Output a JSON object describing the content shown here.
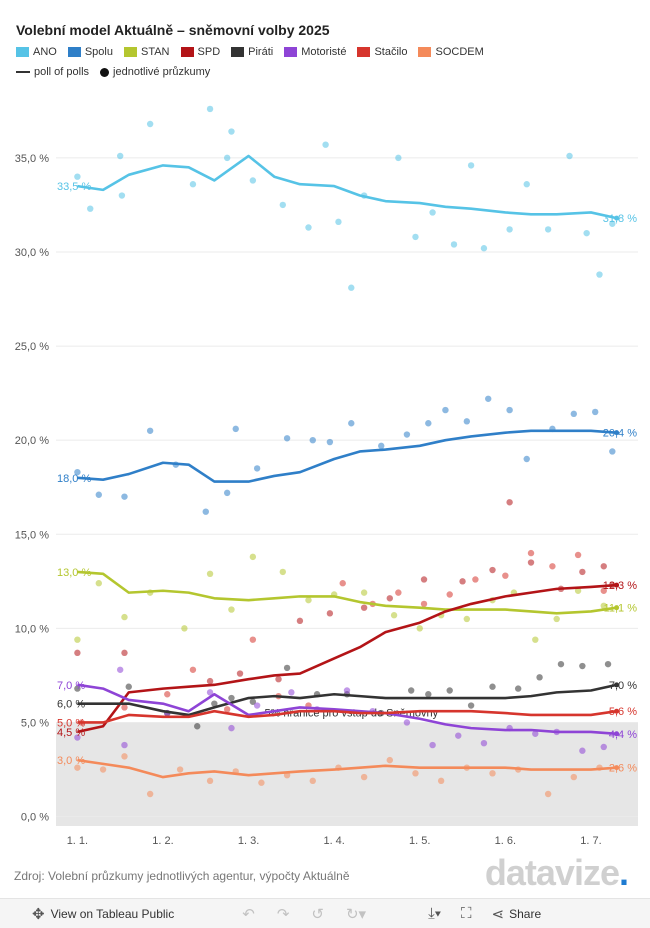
{
  "title": "Volební model Aktuálně – sněmovní volby 2025",
  "legend": {
    "parties": [
      {
        "name": "ANO",
        "color": "#56c3e6"
      },
      {
        "name": "Spolu",
        "color": "#2f7fc8"
      },
      {
        "name": "STAN",
        "color": "#b4c62f"
      },
      {
        "name": "SPD",
        "color": "#b31417"
      },
      {
        "name": "Piráti",
        "color": "#333333"
      },
      {
        "name": "Motoristé",
        "color": "#8e44d6"
      },
      {
        "name": "Stačilo",
        "color": "#d6352d"
      },
      {
        "name": "SOCDEM",
        "color": "#f48a5a"
      }
    ],
    "poll_of_polls": "poll of polls",
    "individual_polls": "jednotlivé průzkumy"
  },
  "source": "Zdroj: Volební průzkumy jednotlivých agentur, výpočty Aktuálně",
  "brand": {
    "main": "datavize",
    "accent": "."
  },
  "toolbar": {
    "view_label": "View on Tableau Public",
    "share_label": "Share"
  },
  "chart_data": {
    "type": "line",
    "x": [
      1,
      1.3,
      1.6,
      2,
      2.3,
      2.6,
      3,
      3.3,
      3.6,
      4,
      4.3,
      4.6,
      5,
      5.3,
      5.6,
      6,
      6.3,
      6.6,
      7,
      7.3
    ],
    "x_ticks": [
      {
        "label": "1. 1.",
        "x": 1
      },
      {
        "label": "1. 2.",
        "x": 2
      },
      {
        "label": "1. 3.",
        "x": 3
      },
      {
        "label": "1. 4.",
        "x": 4
      },
      {
        "label": "1. 5.",
        "x": 5
      },
      {
        "label": "1. 6.",
        "x": 6
      },
      {
        "label": "1. 7.",
        "x": 7
      }
    ],
    "xlim": [
      0.75,
      7.55
    ],
    "y_ticks": [
      {
        "label": "0,0 %",
        "v": 0
      },
      {
        "label": "5,0 %",
        "v": 5
      },
      {
        "label": "10,0 %",
        "v": 10
      },
      {
        "label": "15,0 %",
        "v": 15
      },
      {
        "label": "20,0 %",
        "v": 20
      },
      {
        "label": "25,0 %",
        "v": 25
      },
      {
        "label": "30,0 %",
        "v": 30
      },
      {
        "label": "35,0 %",
        "v": 35
      }
    ],
    "ylim": [
      -0.5,
      38.5
    ],
    "threshold": {
      "value": 5,
      "label": "5% hranice pro vstup do Sněmovny"
    },
    "series": [
      {
        "name": "ANO",
        "color": "#56c3e6",
        "start_label": "33,5 %",
        "end_label": "31,8 %",
        "values": [
          33.5,
          33.3,
          34.1,
          34.6,
          34.5,
          33.8,
          35.1,
          34.0,
          33.6,
          33.5,
          33.0,
          32.7,
          32.6,
          32.4,
          32.3,
          32.1,
          32.0,
          32.0,
          32.1,
          31.8
        ]
      },
      {
        "name": "Spolu",
        "color": "#2f7fc8",
        "start_label": "18,0 %",
        "end_label": "20,4 %",
        "values": [
          18.0,
          17.9,
          18.2,
          18.8,
          18.7,
          17.8,
          17.8,
          18.1,
          18.3,
          19.0,
          19.4,
          19.5,
          19.7,
          20.0,
          20.2,
          20.4,
          20.5,
          20.5,
          20.5,
          20.4
        ]
      },
      {
        "name": "STAN",
        "color": "#b4c62f",
        "start_label": "13,0 %",
        "end_label": "11,1 %",
        "values": [
          13.0,
          12.9,
          11.9,
          12.0,
          11.9,
          11.6,
          11.5,
          11.6,
          11.7,
          11.7,
          11.4,
          11.2,
          11.1,
          11.0,
          11.0,
          11.0,
          10.9,
          10.8,
          10.9,
          11.1
        ]
      },
      {
        "name": "SPD",
        "color": "#b31417",
        "start_label": "4,5 %",
        "end_label": "12,3 %",
        "values": [
          4.5,
          4.8,
          6.6,
          6.8,
          6.9,
          7.0,
          7.3,
          7.5,
          7.6,
          8.4,
          9.0,
          9.8,
          10.3,
          10.9,
          11.3,
          11.7,
          11.9,
          12.1,
          12.2,
          12.3
        ]
      },
      {
        "name": "Piráti",
        "color": "#333333",
        "start_label": "6,0 %",
        "end_label": "7,0 %",
        "values": [
          6.0,
          6.0,
          6.0,
          5.6,
          5.4,
          5.8,
          6.3,
          6.4,
          6.3,
          6.5,
          6.4,
          6.3,
          6.3,
          6.3,
          6.3,
          6.3,
          6.4,
          6.6,
          6.7,
          7.0
        ]
      },
      {
        "name": "Motoristé",
        "color": "#8e44d6",
        "start_label": "7,0 %",
        "end_label": "4,4 %",
        "values": [
          7.0,
          6.8,
          6.2,
          6.0,
          5.6,
          6.5,
          5.4,
          5.6,
          5.8,
          5.7,
          5.6,
          5.5,
          5.2,
          4.9,
          4.7,
          4.6,
          4.6,
          4.5,
          4.5,
          4.4
        ]
      },
      {
        "name": "Stačilo",
        "color": "#d6352d",
        "start_label": "5,0 %",
        "end_label": "5,6 %",
        "values": [
          5.0,
          5.0,
          5.4,
          5.3,
          5.3,
          5.6,
          5.3,
          5.4,
          5.6,
          5.6,
          5.5,
          5.5,
          5.6,
          5.6,
          5.6,
          5.5,
          5.4,
          5.4,
          5.4,
          5.6
        ]
      },
      {
        "name": "SOCDEM",
        "color": "#f48a5a",
        "start_label": "3,0 %",
        "end_label": "2,6 %",
        "values": [
          3.0,
          2.8,
          2.6,
          2.1,
          2.3,
          2.4,
          2.2,
          2.3,
          2.4,
          2.5,
          2.6,
          2.7,
          2.6,
          2.6,
          2.6,
          2.6,
          2.5,
          2.5,
          2.5,
          2.6
        ]
      }
    ],
    "polls": [
      {
        "series": "ANO",
        "points": [
          [
            1.0,
            34.0
          ],
          [
            1.15,
            32.3
          ],
          [
            1.5,
            35.1
          ],
          [
            1.52,
            33.0
          ],
          [
            1.85,
            36.8
          ],
          [
            2.35,
            33.6
          ],
          [
            2.55,
            37.6
          ],
          [
            2.8,
            36.4
          ],
          [
            2.75,
            35.0
          ],
          [
            3.05,
            33.8
          ],
          [
            3.4,
            32.5
          ],
          [
            3.7,
            31.3
          ],
          [
            3.9,
            35.7
          ],
          [
            4.05,
            31.6
          ],
          [
            4.2,
            28.1
          ],
          [
            4.35,
            33.0
          ],
          [
            4.75,
            35.0
          ],
          [
            4.95,
            30.8
          ],
          [
            5.15,
            32.1
          ],
          [
            5.4,
            30.4
          ],
          [
            5.6,
            34.6
          ],
          [
            5.75,
            30.2
          ],
          [
            6.05,
            31.2
          ],
          [
            6.25,
            33.6
          ],
          [
            6.5,
            31.2
          ],
          [
            6.75,
            35.1
          ],
          [
            6.95,
            31.0
          ],
          [
            7.1,
            28.8
          ],
          [
            7.25,
            31.5
          ]
        ]
      },
      {
        "series": "Spolu",
        "points": [
          [
            1.0,
            18.3
          ],
          [
            1.25,
            17.1
          ],
          [
            1.55,
            17.0
          ],
          [
            1.85,
            20.5
          ],
          [
            2.15,
            18.7
          ],
          [
            2.5,
            16.2
          ],
          [
            2.75,
            17.2
          ],
          [
            2.85,
            20.6
          ],
          [
            3.1,
            18.5
          ],
          [
            3.45,
            20.1
          ],
          [
            3.75,
            20.0
          ],
          [
            3.95,
            19.9
          ],
          [
            4.2,
            20.9
          ],
          [
            4.55,
            19.7
          ],
          [
            4.85,
            20.3
          ],
          [
            5.1,
            20.9
          ],
          [
            5.3,
            21.6
          ],
          [
            5.55,
            21.0
          ],
          [
            5.8,
            22.2
          ],
          [
            6.05,
            21.6
          ],
          [
            6.25,
            19.0
          ],
          [
            6.55,
            20.6
          ],
          [
            6.8,
            21.4
          ],
          [
            7.05,
            21.5
          ],
          [
            7.25,
            19.4
          ]
        ]
      },
      {
        "series": "STAN",
        "points": [
          [
            1.0,
            9.4
          ],
          [
            1.25,
            12.4
          ],
          [
            1.55,
            10.6
          ],
          [
            1.85,
            11.9
          ],
          [
            2.25,
            10.0
          ],
          [
            2.55,
            12.9
          ],
          [
            2.8,
            11.0
          ],
          [
            3.05,
            13.8
          ],
          [
            3.4,
            13.0
          ],
          [
            3.7,
            11.5
          ],
          [
            4.0,
            11.8
          ],
          [
            4.35,
            11.9
          ],
          [
            4.7,
            10.7
          ],
          [
            5.0,
            10.0
          ],
          [
            5.25,
            10.7
          ],
          [
            5.55,
            10.5
          ],
          [
            5.85,
            11.5
          ],
          [
            6.1,
            11.9
          ],
          [
            6.35,
            9.4
          ],
          [
            6.6,
            10.5
          ],
          [
            6.85,
            12.0
          ],
          [
            7.15,
            11.2
          ]
        ]
      },
      {
        "series": "SPD",
        "points": [
          [
            1.0,
            8.7
          ],
          [
            1.55,
            8.7
          ],
          [
            2.55,
            7.2
          ],
          [
            2.9,
            7.6
          ],
          [
            3.35,
            7.3
          ],
          [
            3.6,
            10.4
          ],
          [
            3.95,
            10.8
          ],
          [
            4.35,
            11.1
          ],
          [
            4.65,
            11.6
          ],
          [
            5.05,
            12.6
          ],
          [
            5.5,
            12.5
          ],
          [
            5.85,
            13.1
          ],
          [
            6.05,
            16.7
          ],
          [
            6.3,
            13.5
          ],
          [
            6.65,
            12.1
          ],
          [
            6.9,
            13.0
          ],
          [
            7.15,
            13.3
          ],
          [
            7.25,
            12.3
          ]
        ]
      },
      {
        "series": "Piráti",
        "points": [
          [
            1.0,
            6.8
          ],
          [
            1.6,
            6.9
          ],
          [
            2.05,
            5.5
          ],
          [
            2.4,
            4.8
          ],
          [
            2.6,
            6.0
          ],
          [
            2.8,
            6.3
          ],
          [
            3.05,
            6.1
          ],
          [
            3.45,
            7.9
          ],
          [
            3.8,
            6.5
          ],
          [
            4.15,
            6.5
          ],
          [
            4.55,
            5.5
          ],
          [
            4.9,
            6.7
          ],
          [
            5.1,
            6.5
          ],
          [
            5.35,
            6.7
          ],
          [
            5.6,
            5.9
          ],
          [
            5.85,
            6.9
          ],
          [
            6.15,
            6.8
          ],
          [
            6.4,
            7.4
          ],
          [
            6.65,
            8.1
          ],
          [
            6.9,
            8.0
          ],
          [
            7.2,
            8.1
          ]
        ]
      },
      {
        "series": "Motoristé",
        "points": [
          [
            1.0,
            4.2
          ],
          [
            1.5,
            7.8
          ],
          [
            1.55,
            3.8
          ],
          [
            2.05,
            5.5
          ],
          [
            2.55,
            6.6
          ],
          [
            2.8,
            4.7
          ],
          [
            3.1,
            5.9
          ],
          [
            3.5,
            6.6
          ],
          [
            3.8,
            5.7
          ],
          [
            4.15,
            6.7
          ],
          [
            4.45,
            5.6
          ],
          [
            4.85,
            5.0
          ],
          [
            5.15,
            3.8
          ],
          [
            5.45,
            4.3
          ],
          [
            5.75,
            3.9
          ],
          [
            6.05,
            4.7
          ],
          [
            6.35,
            4.4
          ],
          [
            6.6,
            4.5
          ],
          [
            6.9,
            3.5
          ],
          [
            7.15,
            3.7
          ]
        ]
      },
      {
        "series": "Stačilo",
        "points": [
          [
            1.05,
            5.0
          ],
          [
            1.55,
            5.8
          ],
          [
            2.05,
            6.5
          ],
          [
            2.35,
            7.8
          ],
          [
            2.75,
            5.7
          ],
          [
            3.05,
            9.4
          ],
          [
            3.35,
            6.4
          ],
          [
            3.7,
            5.9
          ],
          [
            4.1,
            12.4
          ],
          [
            4.45,
            11.3
          ],
          [
            4.75,
            11.9
          ],
          [
            5.05,
            11.3
          ],
          [
            5.35,
            11.8
          ],
          [
            5.65,
            12.6
          ],
          [
            6.0,
            12.8
          ],
          [
            6.3,
            14.0
          ],
          [
            6.55,
            13.3
          ],
          [
            6.85,
            13.9
          ],
          [
            7.15,
            12.0
          ]
        ]
      },
      {
        "series": "SOCDEM",
        "points": [
          [
            1.0,
            2.6
          ],
          [
            1.3,
            2.5
          ],
          [
            1.55,
            3.2
          ],
          [
            1.85,
            1.2
          ],
          [
            2.2,
            2.5
          ],
          [
            2.55,
            1.9
          ],
          [
            2.85,
            2.4
          ],
          [
            3.15,
            1.8
          ],
          [
            3.45,
            2.2
          ],
          [
            3.75,
            1.9
          ],
          [
            4.05,
            2.6
          ],
          [
            4.35,
            2.1
          ],
          [
            4.65,
            3.0
          ],
          [
            4.95,
            2.3
          ],
          [
            5.25,
            1.9
          ],
          [
            5.55,
            2.6
          ],
          [
            5.85,
            2.3
          ],
          [
            6.15,
            2.5
          ],
          [
            6.5,
            1.2
          ],
          [
            6.8,
            2.1
          ],
          [
            7.1,
            2.6
          ]
        ]
      }
    ]
  }
}
